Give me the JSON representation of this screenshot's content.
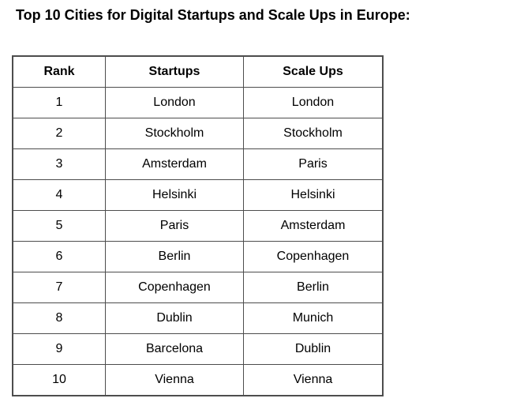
{
  "page_title": "Top 10 Cities for Digital Startups and Scale Ups in Europe:",
  "table": {
    "headers": {
      "rank": "Rank",
      "startups": "Startups",
      "scale_ups": "Scale Ups"
    },
    "rows": [
      [
        "1",
        "London",
        "London"
      ],
      [
        "2",
        "Stockholm",
        "Stockholm"
      ],
      [
        "3",
        "Amsterdam",
        "Paris"
      ],
      [
        "4",
        "Helsinki",
        "Helsinki"
      ],
      [
        "5",
        "Paris",
        "Amsterdam"
      ],
      [
        "6",
        "Berlin",
        "Copenhagen"
      ],
      [
        "7",
        "Copenhagen",
        "Berlin"
      ],
      [
        "8",
        "Dublin",
        "Munich"
      ],
      [
        "9",
        "Barcelona",
        "Dublin"
      ],
      [
        "10",
        "Vienna",
        "Vienna"
      ]
    ]
  },
  "colors": {
    "border": "#4d4d4d",
    "text": "#000000",
    "background": "#ffffff"
  },
  "chart_data": {
    "type": "table",
    "title": "Top 10 Cities for Digital Startups and Scale Ups in Europe:",
    "columns": [
      "Rank",
      "Startups",
      "Scale Ups"
    ],
    "rows": [
      [
        "1",
        "London",
        "London"
      ],
      [
        "2",
        "Stockholm",
        "Stockholm"
      ],
      [
        "3",
        "Amsterdam",
        "Paris"
      ],
      [
        "4",
        "Helsinki",
        "Helsinki"
      ],
      [
        "5",
        "Paris",
        "Amsterdam"
      ],
      [
        "6",
        "Berlin",
        "Copenhagen"
      ],
      [
        "7",
        "Copenhagen",
        "Berlin"
      ],
      [
        "8",
        "Dublin",
        "Munich"
      ],
      [
        "9",
        "Barcelona",
        "Dublin"
      ],
      [
        "10",
        "Vienna",
        "Vienna"
      ]
    ]
  }
}
